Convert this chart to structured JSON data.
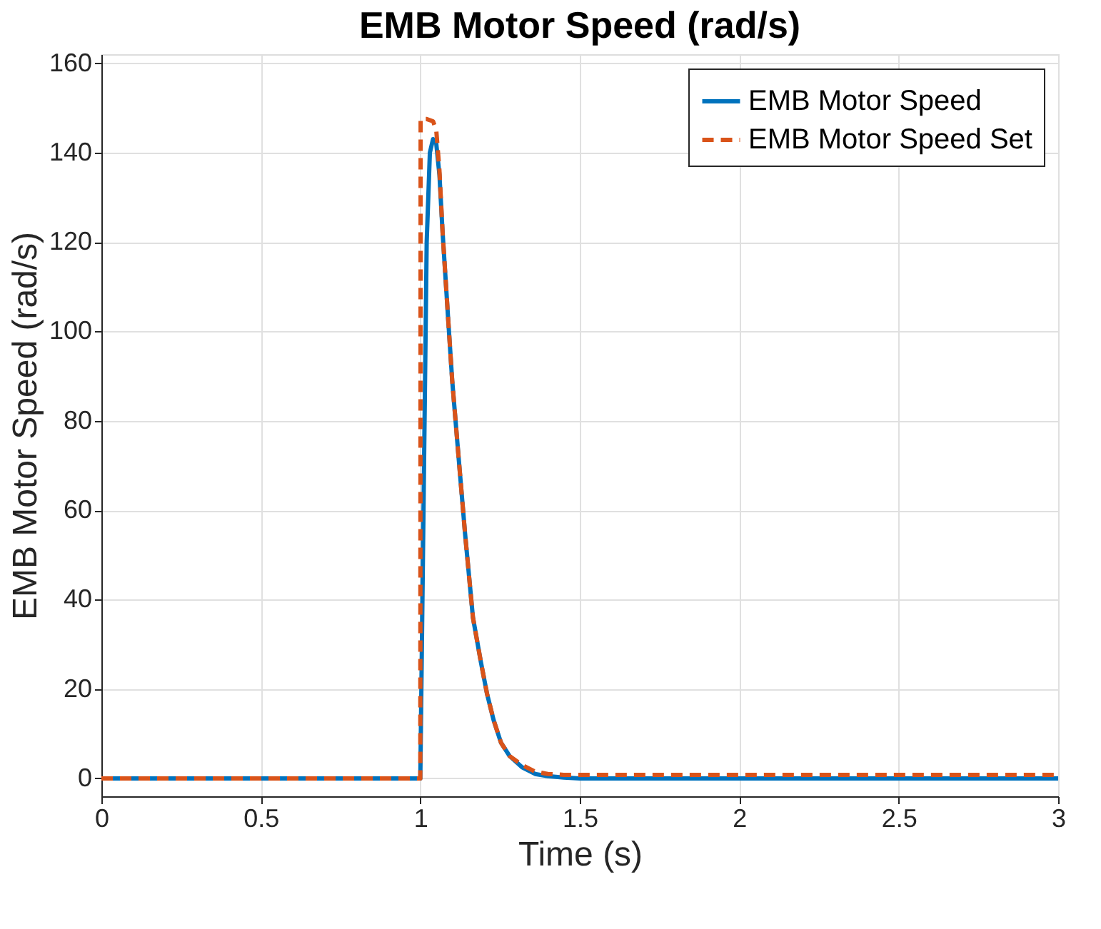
{
  "chart_data": {
    "type": "line",
    "title": "EMB Motor Speed (rad/s)",
    "xlabel": "Time (s)",
    "ylabel": "EMB Motor Speed (rad/s)",
    "xlim": [
      0,
      3
    ],
    "ylim": [
      -4,
      162
    ],
    "xticks": [
      0,
      0.5,
      1,
      1.5,
      2,
      2.5,
      3
    ],
    "yticks": [
      0,
      20,
      40,
      60,
      80,
      100,
      120,
      140,
      160
    ],
    "grid": true,
    "legend": "top right",
    "series": [
      {
        "name": "EMB Motor Speed",
        "color": "#0072bd",
        "line_style": "solid",
        "x": [
          0,
          1.0,
          1.01,
          1.02,
          1.03,
          1.04,
          1.05,
          1.06,
          1.07,
          1.088,
          1.1,
          1.121,
          1.14,
          1.165,
          1.19,
          1.209,
          1.23,
          1.253,
          1.28,
          1.319,
          1.36,
          1.4,
          1.45,
          1.5,
          2,
          2.5,
          3
        ],
        "values": [
          0,
          0,
          60,
          120,
          140,
          143,
          142,
          135,
          122,
          102,
          89,
          71,
          55,
          36,
          26,
          19,
          13,
          8,
          5,
          2.5,
          1,
          0.5,
          0.2,
          0,
          0,
          0,
          0
        ]
      },
      {
        "name": "EMB Motor Speed Set",
        "color": "#d95319",
        "line_style": "dashed",
        "x": [
          0,
          1.0,
          1.001,
          1.02,
          1.04,
          1.05,
          1.06,
          1.07,
          1.088,
          1.1,
          1.121,
          1.14,
          1.165,
          1.19,
          1.209,
          1.23,
          1.253,
          1.28,
          1.319,
          1.36,
          1.4,
          1.45,
          1.5,
          2,
          2.5,
          3
        ],
        "values": [
          0,
          0,
          147.5,
          147.5,
          147,
          145,
          136,
          122,
          102,
          89,
          71,
          55,
          36,
          26,
          19,
          13,
          8,
          5,
          3,
          1.5,
          1,
          0.8,
          0.8,
          0.8,
          0.8,
          0.8
        ]
      }
    ]
  }
}
